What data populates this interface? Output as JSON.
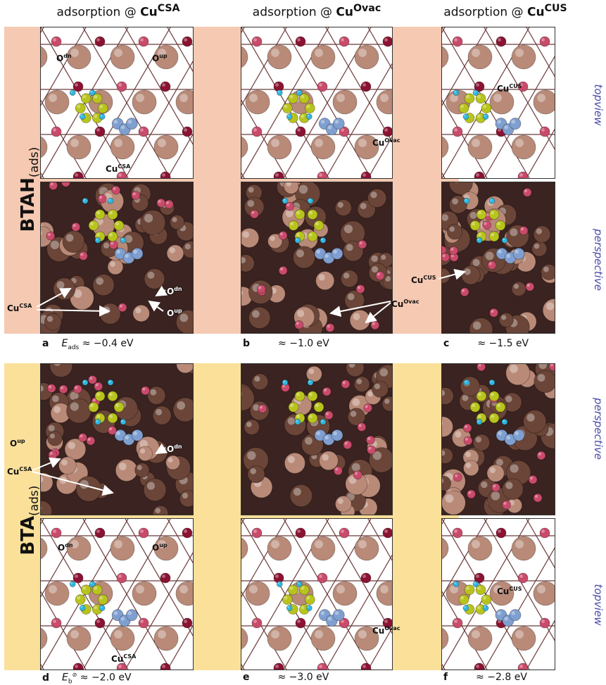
{
  "columns": [
    {
      "prefix": "adsorption @ ",
      "site": "Cu",
      "site_sup": "CSA"
    },
    {
      "prefix": "adsorption @ ",
      "site": "Cu",
      "site_sup": "Ovac"
    },
    {
      "prefix": "adsorption @ ",
      "site": "Cu",
      "site_sup": "CUS"
    }
  ],
  "rows": [
    {
      "label": "BTAH",
      "label_sub": "(ads)",
      "band_color": "#f6c9b2"
    },
    {
      "label": "BTA",
      "label_sub": "(ads)",
      "band_color": "#fbe09a"
    }
  ],
  "view_labels": {
    "topview": "topview",
    "perspective": "perspective"
  },
  "atom_labels": {
    "o_dn": "O",
    "o_dn_sup": "dn",
    "o_up": "O",
    "o_up_sup": "up",
    "cu": "Cu",
    "csa": "CSA",
    "ovac": "Ovac",
    "cus": "CUS"
  },
  "captions": [
    {
      "letter": "a",
      "text": "≈ −0.4 eV",
      "var": "E",
      "var_sub": "ads"
    },
    {
      "letter": "b",
      "text": "≈ −1.0 eV"
    },
    {
      "letter": "c",
      "text": "≈ −1.5 eV"
    },
    {
      "letter": "d",
      "text": "≈ −2.0 eV",
      "var": "E",
      "var_sub": "b",
      "var_sup": "⊘"
    },
    {
      "letter": "e",
      "text": "≈ −3.0 eV"
    },
    {
      "letter": "f",
      "text": "≈ −2.8 eV"
    }
  ],
  "colors": {
    "cu_atom": "#b98a78",
    "o_atom": "#8b1232",
    "o_light": "#c94a6a",
    "carbon": "#b8c41c",
    "nitrogen": "#7f9fd0",
    "hydrogen": "#2fb7e0",
    "cus_atom": "#e8e0d8",
    "ovac_mark": "#e8533a"
  }
}
